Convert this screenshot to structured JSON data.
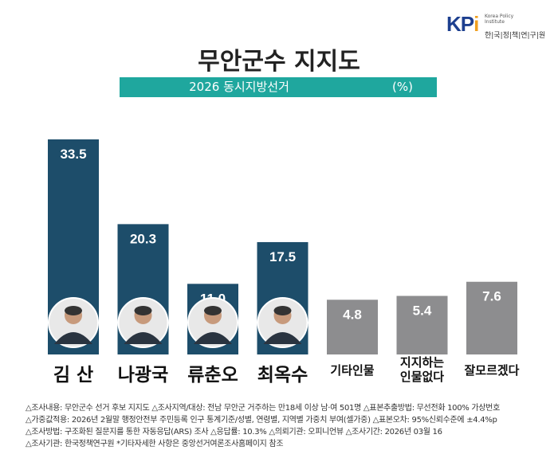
{
  "logo": {
    "mark": "KPI",
    "en": "Korea Policy Institute",
    "kr": "한|국|정|책|연|구|원"
  },
  "title": "무안군수 지지도",
  "subtitle": "2026 동시지방선거",
  "unit": "(%)",
  "colors": {
    "candidate": "#1d4d6a",
    "other": "#8d8d8f",
    "banner": "#1fa79e"
  },
  "chart_data": {
    "type": "bar",
    "categories": [
      "김 산",
      "나광국",
      "류춘오",
      "최옥수",
      "기타인물",
      "지지하는 인물없다",
      "잘모르겠다"
    ],
    "values": [
      33.5,
      20.3,
      11.0,
      17.5,
      4.8,
      5.4,
      7.6
    ],
    "labels": [
      "33.5",
      "20.3",
      "11.0",
      "17.5",
      "4.8",
      "5.4",
      "7.6"
    ],
    "candidate_photos": [
      true,
      true,
      true,
      true,
      false,
      false,
      false
    ],
    "grid": false
  },
  "footer": [
    "△조사내용: 무안군수 선거 후보 지지도   △조사지역/대상: 전남 무안군 거주하는 만18세 이상 남·여 501명   △표본추출방법: 무선전화 100% 가상번호",
    "△가중값적용: 2026년 2월말 행정안전부 주민등록 인구 통계기준/성별, 연령별, 지역별 가중치 부여(셀가중)   △표본오차: 95%신뢰수준에 ±4.4%p",
    "△조사방법: 구조화된 질문지를 통한 자동응답(ARS) 조사   △응답률: 10.3%   △의뢰기관: 오피니언뷰   △조사기간: 2026년 03월 16",
    "△조사기관: 한국정책연구원 *기타자세한 사항은 중앙선거여론조사홈페이지 참조"
  ]
}
